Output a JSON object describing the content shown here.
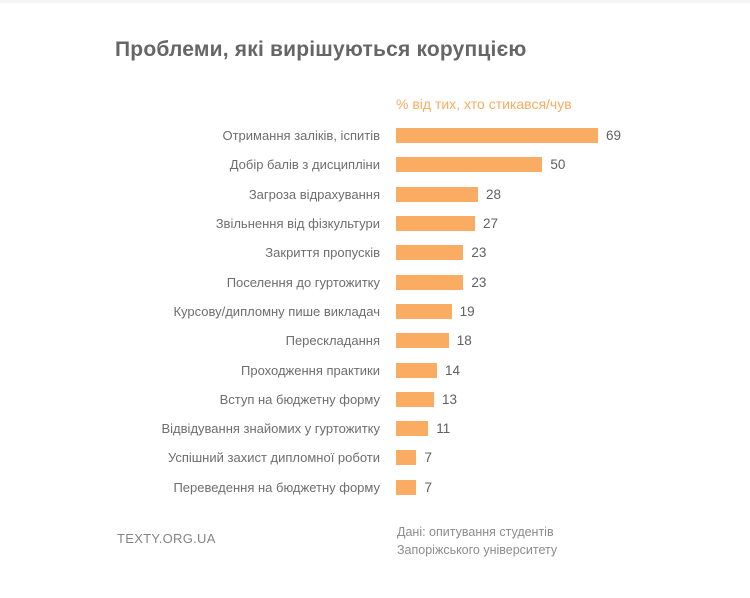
{
  "title": "Проблеми, які вирішуються корупцією",
  "subtitle": "% від тих, хто стикався/чув",
  "footer": {
    "brand": "TEXTY.ORG.UA",
    "source_line1": "Дані: опитування студентів",
    "source_line2": "Запоріжського університету"
  },
  "colors": {
    "bar": "#faac63",
    "accent_text": "#f9ab62",
    "title_text": "#666666",
    "label_text": "#6e6e6e",
    "value_text": "#606060",
    "footer_text": "#8c8c8c",
    "background": "#ffffff"
  },
  "chart_data": {
    "type": "bar",
    "orientation": "horizontal",
    "title": "Проблеми, які вирішуються корупцією",
    "xlabel": "% від тих, хто стикався/чув",
    "ylabel": "",
    "categories": [
      "Отримання заліків, іспитів",
      "Добір балів з дисципліни",
      "Загроза відрахування",
      "Звільнення від фізкультури",
      "Закриття пропусків",
      "Поселення до гуртожитку",
      "Курсову/дипломну пише викладач",
      "Перескладання",
      "Проходження практики",
      "Вступ на бюджетну форму",
      "Відвідування знайомих у гуртожитку",
      "Успішний захист дипломної роботи",
      "Переведення на бюджетну форму"
    ],
    "values": [
      69,
      50,
      28,
      27,
      23,
      23,
      19,
      18,
      14,
      13,
      11,
      7,
      7
    ],
    "xlim": [
      0,
      69
    ],
    "grid": false,
    "value_labels": true,
    "legend": false
  }
}
